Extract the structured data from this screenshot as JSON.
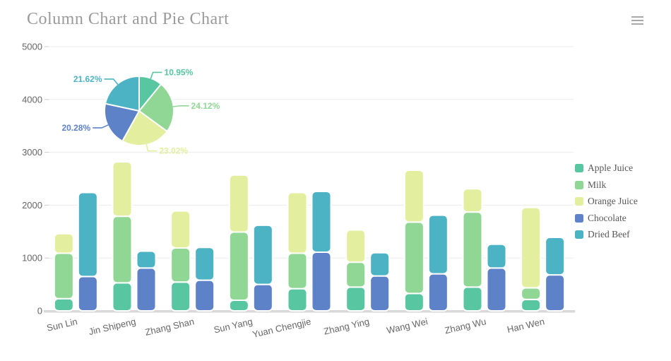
{
  "header": {
    "title": "Column Chart and Pie Chart"
  },
  "toolbar": {
    "menu_icon": "hamburger-icon"
  },
  "colors": {
    "series": {
      "Apple Juice": "#57c6a1",
      "Milk": "#90d795",
      "Orange Juice": "#e3ef9e",
      "Chocolate": "#5e82c8",
      "Dried Beef": "#4cb3c4"
    },
    "title_text": "#9a9a9a",
    "axis_text": "#666666",
    "legend_text": "#575757",
    "grid_line": "#ececec",
    "axis_line": "#d8d8d8",
    "icon": "#a9a9a9",
    "background": "#ffffff"
  },
  "legend": {
    "position": "right",
    "items": [
      "Apple Juice",
      "Milk",
      "Orange Juice",
      "Chocolate",
      "Dried Beef"
    ]
  },
  "chart_data": [
    {
      "type": "bar",
      "stacked": true,
      "title": "Column Chart and Pie Chart",
      "categories": [
        "Sun Lin",
        "Jin Shipeng",
        "Zhang Shan",
        "Sun Yang",
        "Yuan Chengjie",
        "Zhang Ying",
        "Wang Wei",
        "Zhang Wu",
        "Han Wen"
      ],
      "stacks": [
        {
          "name": "drinks-stack",
          "series": [
            {
              "name": "Apple Juice",
              "values": [
                230,
                530,
                545,
                200,
                420,
                450,
                330,
                450,
                215
              ]
            },
            {
              "name": "Milk",
              "values": [
                860,
                1260,
                645,
                1290,
                670,
                470,
                1350,
                1420,
                220
              ]
            },
            {
              "name": "Orange Juice",
              "values": [
                370,
                1030,
                700,
                1080,
                1150,
                610,
                980,
                440,
                1520
              ]
            }
          ]
        },
        {
          "name": "food-stack",
          "series": [
            {
              "name": "Chocolate",
              "values": [
                650,
                810,
                580,
                500,
                1110,
                660,
                700,
                810,
                680
              ]
            },
            {
              "name": "Dried Beef",
              "values": [
                1590,
                320,
                620,
                1120,
                1150,
                440,
                1110,
                450,
                710
              ]
            }
          ]
        }
      ],
      "xlabel": "",
      "ylabel": "",
      "ylim": [
        0,
        5000
      ],
      "yticks": [
        0,
        1000,
        2000,
        3000,
        4000,
        5000
      ],
      "grid": true,
      "legend_position": "right"
    },
    {
      "type": "pie",
      "start": "top",
      "direction": "clockwise",
      "slices": [
        {
          "name": "Apple Juice",
          "label": "10.95%",
          "value": 10.95
        },
        {
          "name": "Milk",
          "label": "24.12%",
          "value": 24.12
        },
        {
          "name": "Orange Juice",
          "label": "23.02%",
          "value": 23.02
        },
        {
          "name": "Chocolate",
          "label": "20.28%",
          "value": 20.28
        },
        {
          "name": "Dried Beef",
          "label": "21.62%",
          "value": 21.62
        }
      ]
    }
  ]
}
